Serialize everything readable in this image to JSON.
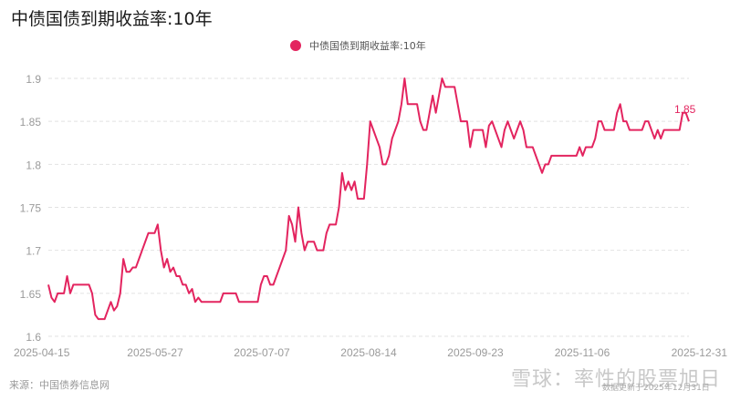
{
  "header": {
    "title": "中债国债到期收益率:10年"
  },
  "legend": {
    "label": "中债国债到期收益率:10年",
    "color": "#e3245f"
  },
  "footer": {
    "source": "来源：中国债券信息网",
    "watermark": "雪球：率性的股票旭日",
    "updated": "数据更新于2025年12月31日"
  },
  "chart_data": {
    "type": "line",
    "title": "中债国债到期收益率:10年",
    "xlabel": "",
    "ylabel": "",
    "ylim": [
      1.6,
      1.9
    ],
    "yticks": [
      1.6,
      1.65,
      1.7,
      1.75,
      1.8,
      1.85,
      1.9
    ],
    "xticks": [
      "2025-04-15",
      "2025-05-27",
      "2025-07-07",
      "2025-08-14",
      "2025-09-23",
      "2025-11-06",
      "2025-12-31"
    ],
    "grid": true,
    "legend_position": "top",
    "last_label": "1.85",
    "series": [
      {
        "name": "中债国债到期收益率:10年",
        "color": "#e3245f",
        "values": [
          1.66,
          1.645,
          1.64,
          1.65,
          1.65,
          1.65,
          1.67,
          1.65,
          1.66,
          1.66,
          1.66,
          1.66,
          1.66,
          1.66,
          1.65,
          1.625,
          1.62,
          1.62,
          1.62,
          1.63,
          1.64,
          1.63,
          1.635,
          1.65,
          1.69,
          1.675,
          1.675,
          1.68,
          1.68,
          1.69,
          1.7,
          1.71,
          1.72,
          1.72,
          1.72,
          1.73,
          1.7,
          1.68,
          1.69,
          1.675,
          1.68,
          1.67,
          1.67,
          1.66,
          1.66,
          1.65,
          1.655,
          1.64,
          1.645,
          1.64,
          1.64,
          1.64,
          1.64,
          1.64,
          1.64,
          1.64,
          1.65,
          1.65,
          1.65,
          1.65,
          1.65,
          1.64,
          1.64,
          1.64,
          1.64,
          1.64,
          1.64,
          1.64,
          1.66,
          1.67,
          1.67,
          1.66,
          1.66,
          1.67,
          1.68,
          1.69,
          1.7,
          1.74,
          1.73,
          1.71,
          1.75,
          1.72,
          1.7,
          1.71,
          1.71,
          1.71,
          1.7,
          1.7,
          1.7,
          1.72,
          1.73,
          1.73,
          1.73,
          1.75,
          1.79,
          1.77,
          1.78,
          1.77,
          1.78,
          1.76,
          1.76,
          1.76,
          1.8,
          1.85,
          1.84,
          1.83,
          1.82,
          1.8,
          1.8,
          1.81,
          1.83,
          1.84,
          1.85,
          1.87,
          1.9,
          1.87,
          1.87,
          1.87,
          1.87,
          1.85,
          1.84,
          1.84,
          1.86,
          1.88,
          1.86,
          1.88,
          1.9,
          1.89,
          1.89,
          1.89,
          1.89,
          1.87,
          1.85,
          1.85,
          1.85,
          1.82,
          1.84,
          1.84,
          1.84,
          1.84,
          1.82,
          1.845,
          1.85,
          1.84,
          1.83,
          1.82,
          1.84,
          1.85,
          1.84,
          1.83,
          1.84,
          1.85,
          1.84,
          1.82,
          1.82,
          1.82,
          1.81,
          1.8,
          1.79,
          1.8,
          1.8,
          1.81,
          1.81,
          1.81,
          1.81,
          1.81,
          1.81,
          1.81,
          1.81,
          1.81,
          1.82,
          1.81,
          1.82,
          1.82,
          1.82,
          1.83,
          1.85,
          1.85,
          1.84,
          1.84,
          1.84,
          1.84,
          1.86,
          1.87,
          1.85,
          1.85,
          1.84,
          1.84,
          1.84,
          1.84,
          1.84,
          1.85,
          1.85,
          1.84,
          1.83,
          1.84,
          1.83,
          1.84,
          1.84,
          1.84,
          1.84,
          1.84,
          1.84,
          1.86,
          1.86,
          1.85
        ]
      }
    ]
  }
}
